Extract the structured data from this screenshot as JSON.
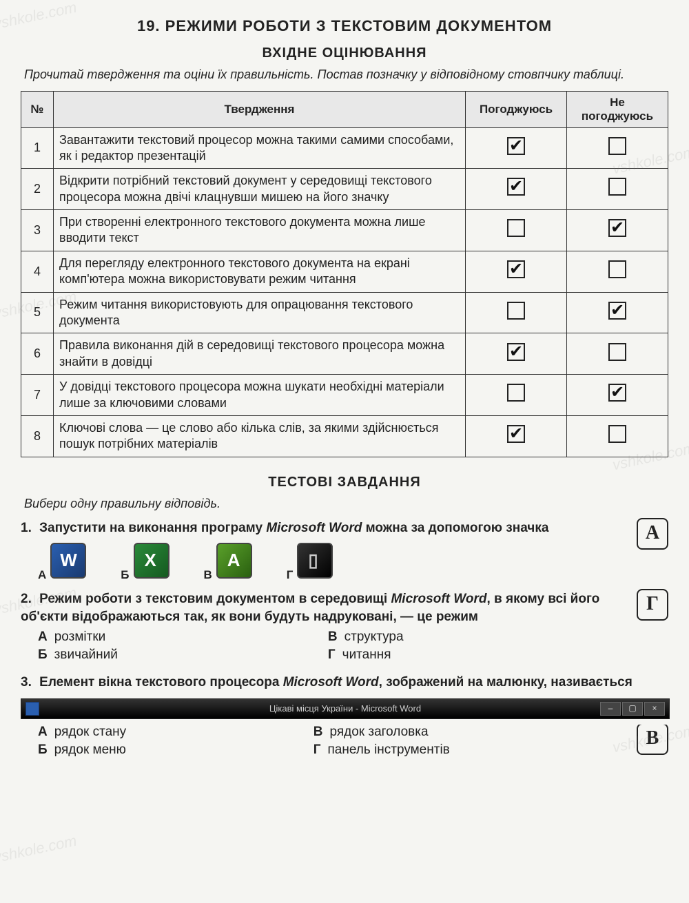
{
  "title": "19. РЕЖИМИ РОБОТИ З ТЕКСТОВИМ ДОКУМЕНТОМ",
  "section1_title": "ВХІДНЕ ОЦІНЮВАННЯ",
  "instr1": "Прочитай твердження та оціни їх правильність. Постав позначку у відповідному стовпчику таблиці.",
  "table": {
    "headers": {
      "num": "№",
      "stmt": "Твердження",
      "agree": "Погоджуюсь",
      "disagree": "Не погоджуюсь"
    },
    "rows": [
      {
        "n": "1",
        "text": "Завантажити текстовий процесор можна такими самими способами, як і редактор презентацій",
        "agree": true,
        "disagree": false
      },
      {
        "n": "2",
        "text": "Відкрити потрібний текстовий документ у середовищі текстового процесора можна двічі клацнувши мишею на його значку",
        "agree": true,
        "disagree": false
      },
      {
        "n": "3",
        "text": "При створенні електронного текстового документа можна лише вводити текст",
        "agree": false,
        "disagree": true
      },
      {
        "n": "4",
        "text": "Для перегляду електронного текстового документа на екрані комп'ютера можна використовувати режим читання",
        "agree": true,
        "disagree": false
      },
      {
        "n": "5",
        "text": "Режим читання використовують для опрацювання текстового документа",
        "agree": false,
        "disagree": true
      },
      {
        "n": "6",
        "text": "Правила виконання дій в середовищі текстового процесора можна знайти в довідці",
        "agree": true,
        "disagree": false
      },
      {
        "n": "7",
        "text": "У довідці текстового процесора можна шукати необхідні матеріали лише за ключовими словами",
        "agree": false,
        "disagree": true
      },
      {
        "n": "8",
        "text": "Ключові слова — це слово або кілька слів, за якими здійснюється пошук потрібних матеріалів",
        "agree": true,
        "disagree": false
      }
    ]
  },
  "section2_title": "ТЕСТОВІ ЗАВДАННЯ",
  "instr2": "Вибери одну правильну відповідь.",
  "q1": {
    "num": "1.",
    "text_bold": "Запустити на виконання програму ",
    "text_ital": "Microsoft Word",
    "text_tail": " можна за допомогою значка",
    "labels": {
      "a": "А",
      "b": "Б",
      "c": "В",
      "d": "Г"
    },
    "answer": "А"
  },
  "q2": {
    "num": "2.",
    "line1_a": "Режим роботи з текстовим документом в середовищі ",
    "line1_ital": "Microsoft Word",
    "line1_b": ", в якому всі його об'єкти відображаються так, як вони будуть надруковані, — це режим",
    "opts": {
      "a": "розмітки",
      "b": "звичайний",
      "c": "структура",
      "d": "читання"
    },
    "labels": {
      "a": "А",
      "b": "Б",
      "c": "В",
      "d": "Г"
    },
    "answer": "Г"
  },
  "q3": {
    "num": "3.",
    "line1_a": "Елемент вікна текстового процесора ",
    "line1_ital": "Microsoft Word",
    "line1_b": ", зображений на малюнку, називається",
    "titlebar_text": "Цікаві місця України - Microsoft Word",
    "opts": {
      "a": "рядок стану",
      "b": "рядок меню",
      "c": "рядок заголовка",
      "d": "панель інструментів"
    },
    "labels": {
      "a": "А",
      "b": "Б",
      "c": "В",
      "d": "Г"
    },
    "answer": "В"
  }
}
